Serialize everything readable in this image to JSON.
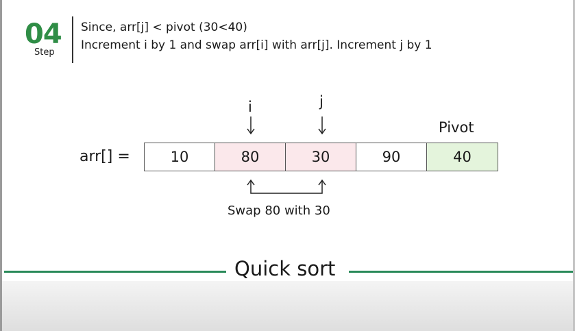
{
  "step": {
    "number": "04",
    "label": "Step"
  },
  "description": {
    "line1": "Since, arr[j] < pivot (30<40)",
    "line2": "Increment i by 1 and swap arr[i] with arr[j]. Increment j by 1"
  },
  "array": {
    "label": "arr[] =",
    "cells": [
      {
        "value": "10",
        "color": "#ffffff"
      },
      {
        "value": "80",
        "color": "#fbe8eb"
      },
      {
        "value": "30",
        "color": "#fbe8eb"
      },
      {
        "value": "90",
        "color": "#ffffff"
      },
      {
        "value": "40",
        "color": "#e4f4dc"
      }
    ]
  },
  "pointers": {
    "i": "i",
    "j": "j"
  },
  "pivot_label": "Pivot",
  "swap_text": "Swap 80 with 30",
  "title": "Quick sort",
  "colors": {
    "accent": "#2f8d46",
    "title_line": "#2a8a5a"
  }
}
